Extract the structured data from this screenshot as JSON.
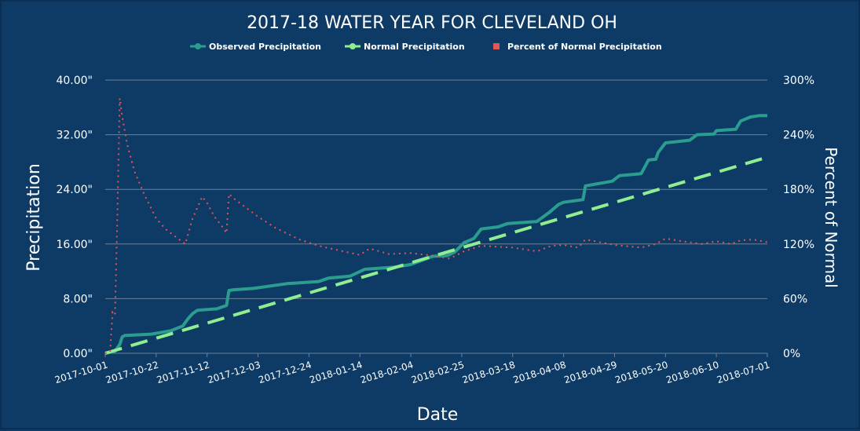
{
  "colors": {
    "background": "#0d3b66",
    "grid": "#6f8196",
    "observed": "#2a9d8f",
    "normal": "#90ee90",
    "percent": "#e25555",
    "text": "#ffffff"
  },
  "chart_data": {
    "type": "line",
    "title": "2017-18 WATER YEAR FOR CLEVELAND OH",
    "xlabel": "Date",
    "ylabel": "Precipitation",
    "y2label": "Percent of Normal",
    "legend_position": "top",
    "grid": true,
    "xlim": [
      "2017-10-01",
      "2018-07-01"
    ],
    "ylim": [
      0,
      40
    ],
    "y2lim": [
      0,
      300
    ],
    "x_ticks": [
      "2017-10-01",
      "2017-10-22",
      "2017-11-12",
      "2017-12-03",
      "2017-12-24",
      "2018-01-14",
      "2018-02-04",
      "2018-02-25",
      "2018-03-18",
      "2018-04-08",
      "2018-04-29",
      "2018-05-20",
      "2018-06-10",
      "2018-07-01"
    ],
    "y_ticks": [
      "0.00\"",
      "8.00\"",
      "16.00\"",
      "24.00\"",
      "32.00\"",
      "40.00\""
    ],
    "y2_ticks": [
      "0%",
      "60%",
      "120%",
      "180%",
      "240%",
      "300%"
    ],
    "series": [
      {
        "name": "Observed Precipitation",
        "axis": "left",
        "style": "solid",
        "points": [
          [
            "2017-10-01",
            0
          ],
          [
            "2017-10-05",
            0.3
          ],
          [
            "2017-10-07",
            1.3
          ],
          [
            "2017-10-08",
            2.4
          ],
          [
            "2017-10-09",
            2.6
          ],
          [
            "2017-10-20",
            2.8
          ],
          [
            "2017-10-28",
            3.3
          ],
          [
            "2017-11-02",
            4.0
          ],
          [
            "2017-11-04",
            5.0
          ],
          [
            "2017-11-06",
            5.8
          ],
          [
            "2017-11-08",
            6.3
          ],
          [
            "2017-11-16",
            6.5
          ],
          [
            "2017-11-20",
            7.0
          ],
          [
            "2017-11-21",
            9.2
          ],
          [
            "2017-11-23",
            9.3
          ],
          [
            "2017-12-01",
            9.5
          ],
          [
            "2017-12-15",
            10.2
          ],
          [
            "2017-12-28",
            10.5
          ],
          [
            "2018-01-01",
            11.0
          ],
          [
            "2018-01-10",
            11.3
          ],
          [
            "2018-01-16",
            12.3
          ],
          [
            "2018-01-28",
            12.6
          ],
          [
            "2018-02-04",
            13.0
          ],
          [
            "2018-02-13",
            14.2
          ],
          [
            "2018-02-19",
            14.3
          ],
          [
            "2018-02-22",
            14.8
          ],
          [
            "2018-02-26",
            16.2
          ],
          [
            "2018-03-02",
            16.8
          ],
          [
            "2018-03-05",
            18.2
          ],
          [
            "2018-03-12",
            18.5
          ],
          [
            "2018-03-16",
            19.0
          ],
          [
            "2018-03-28",
            19.3
          ],
          [
            "2018-04-02",
            20.6
          ],
          [
            "2018-04-06",
            21.8
          ],
          [
            "2018-04-08",
            22.1
          ],
          [
            "2018-04-16",
            22.5
          ],
          [
            "2018-04-17",
            24.5
          ],
          [
            "2018-04-28",
            25.2
          ],
          [
            "2018-05-01",
            26.0
          ],
          [
            "2018-05-10",
            26.3
          ],
          [
            "2018-05-13",
            28.3
          ],
          [
            "2018-05-16",
            28.4
          ],
          [
            "2018-05-17",
            29.4
          ],
          [
            "2018-05-20",
            30.8
          ],
          [
            "2018-05-30",
            31.2
          ],
          [
            "2018-06-02",
            32.0
          ],
          [
            "2018-06-09",
            32.1
          ],
          [
            "2018-06-10",
            32.6
          ],
          [
            "2018-06-18",
            32.8
          ],
          [
            "2018-06-20",
            34.0
          ],
          [
            "2018-06-24",
            34.6
          ],
          [
            "2018-06-28",
            34.8
          ],
          [
            "2018-07-01",
            34.8
          ]
        ]
      },
      {
        "name": "Normal Precipitation",
        "axis": "left",
        "style": "dashed",
        "points": [
          [
            "2017-10-01",
            0
          ],
          [
            "2018-07-01",
            28.7
          ]
        ]
      },
      {
        "name": "Percent of Normal Precipitation",
        "axis": "right",
        "style": "dotted",
        "points": [
          [
            "2017-10-01",
            0
          ],
          [
            "2017-10-03",
            1
          ],
          [
            "2017-10-04",
            45
          ],
          [
            "2017-10-05",
            42
          ],
          [
            "2017-10-06",
            150
          ],
          [
            "2017-10-07",
            280
          ],
          [
            "2017-10-08",
            260
          ],
          [
            "2017-10-10",
            230
          ],
          [
            "2017-10-13",
            200
          ],
          [
            "2017-10-17",
            175
          ],
          [
            "2017-10-22",
            148
          ],
          [
            "2017-10-26",
            136
          ],
          [
            "2017-10-30",
            128
          ],
          [
            "2017-11-03",
            120
          ],
          [
            "2017-11-06",
            148
          ],
          [
            "2017-11-08",
            160
          ],
          [
            "2017-11-10",
            172
          ],
          [
            "2017-11-12",
            165
          ],
          [
            "2017-11-15",
            150
          ],
          [
            "2017-11-18",
            140
          ],
          [
            "2017-11-20",
            132
          ],
          [
            "2017-11-21",
            175
          ],
          [
            "2017-11-23",
            170
          ],
          [
            "2017-11-28",
            160
          ],
          [
            "2017-12-03",
            150
          ],
          [
            "2017-12-10",
            138
          ],
          [
            "2017-12-20",
            125
          ],
          [
            "2017-12-28",
            118
          ],
          [
            "2018-01-07",
            112
          ],
          [
            "2018-01-14",
            108
          ],
          [
            "2018-01-18",
            115
          ],
          [
            "2018-01-26",
            109
          ],
          [
            "2018-02-04",
            110
          ],
          [
            "2018-02-14",
            107
          ],
          [
            "2018-02-20",
            104
          ],
          [
            "2018-02-26",
            112
          ],
          [
            "2018-03-05",
            118
          ],
          [
            "2018-03-12",
            117
          ],
          [
            "2018-03-18",
            116
          ],
          [
            "2018-03-28",
            112
          ],
          [
            "2018-04-03",
            118
          ],
          [
            "2018-04-08",
            119
          ],
          [
            "2018-04-14",
            116
          ],
          [
            "2018-04-17",
            125
          ],
          [
            "2018-04-29",
            119
          ],
          [
            "2018-05-10",
            116
          ],
          [
            "2018-05-16",
            120
          ],
          [
            "2018-05-20",
            126
          ],
          [
            "2018-05-27",
            123
          ],
          [
            "2018-06-04",
            120
          ],
          [
            "2018-06-10",
            123
          ],
          [
            "2018-06-16",
            120
          ],
          [
            "2018-06-20",
            124
          ],
          [
            "2018-06-25",
            125
          ],
          [
            "2018-07-01",
            122
          ]
        ]
      }
    ]
  }
}
